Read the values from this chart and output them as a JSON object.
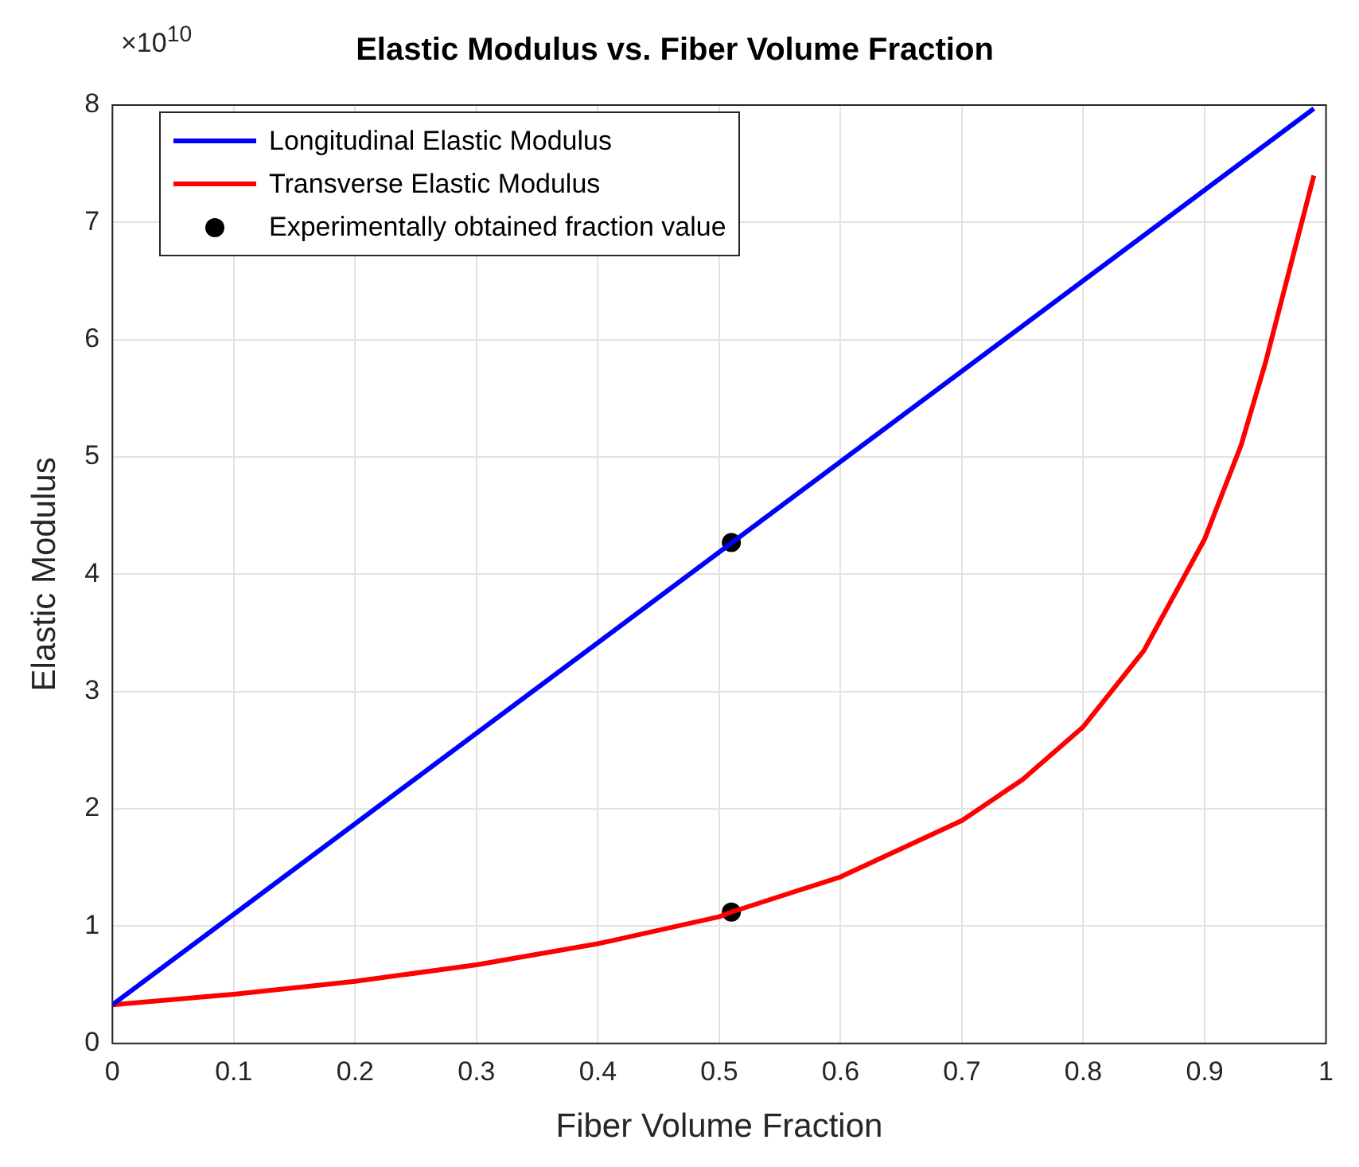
{
  "chart_data": {
    "type": "line",
    "title": "Elastic Modulus vs. Fiber Volume Fraction",
    "xlabel": "Fiber Volume Fraction",
    "ylabel": "Elastic Modulus",
    "annotations": [
      "×10$^{10}$"
    ],
    "xlim": [
      0,
      1
    ],
    "xticks": [
      0,
      0.1,
      0.2,
      0.3,
      0.4,
      0.5,
      0.6,
      0.7,
      0.8,
      0.9,
      1
    ],
    "ylim": [
      0,
      8
    ],
    "yticks": [
      0,
      1,
      2,
      3,
      4,
      5,
      6,
      7,
      8
    ],
    "grid": true,
    "legend": "top left",
    "marker": "none",
    "line_style": "solid",
    "series": [
      {
        "name": "Longitudinal Elastic Modulus",
        "color": "#0000ff",
        "x": [
          0,
          0.99
        ],
        "values": [
          0.33,
          7.97
        ]
      },
      {
        "name": "Transverse Elastic Modulus",
        "color": "#ff0000",
        "x": [
          0,
          0.1,
          0.2,
          0.3,
          0.4,
          0.5,
          0.51,
          0.6,
          0.7,
          0.75,
          0.8,
          0.85,
          0.9,
          0.93,
          0.95,
          0.97,
          0.99
        ],
        "values": [
          0.33,
          0.42,
          0.53,
          0.67,
          0.85,
          1.08,
          1.12,
          1.42,
          1.9,
          2.25,
          2.7,
          3.35,
          4.3,
          5.1,
          5.8,
          6.6,
          7.4
        ]
      },
      {
        "name": "Experimentally obtained fraction value",
        "type": "scatter",
        "marker": "circle",
        "color": "#000000",
        "x": [
          0.51,
          0.51
        ],
        "values": [
          4.27,
          1.12
        ]
      }
    ]
  }
}
